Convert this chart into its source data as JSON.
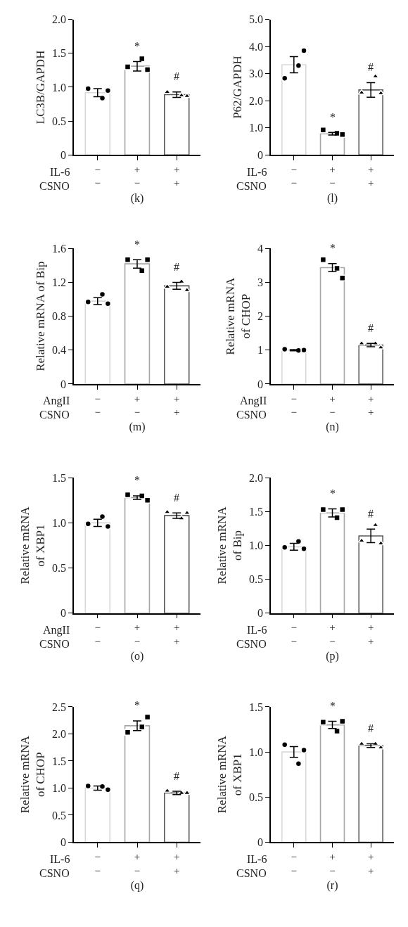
{
  "chart_data": [
    {
      "type": "bar",
      "xlabel": "(k)",
      "ylabel": "LC3B/GAPDH",
      "categories": [
        "−\n−",
        "+\n−",
        "+\n+"
      ],
      "ylim": [
        0,
        2
      ],
      "yticks": [
        0,
        0.5,
        {
          "value": 1,
          "label": "1.0"
        },
        1.5,
        {
          "value": 2,
          "label": "2.0"
        }
      ],
      "series": [
        {
          "type": "bar",
          "values": [
            0.92,
            1.31,
            0.89
          ],
          "errors": [
            0.06,
            0.07,
            0.04
          ],
          "colors": [
            "#d9d9d9",
            "#a6a6a6",
            "#595959"
          ]
        },
        {
          "type": "scatter",
          "marker": "circle",
          "color": "#000000",
          "x": [
            "−\n−",
            "−\n−",
            "−\n−"
          ],
          "values": [
            0.98,
            0.84,
            0.95
          ]
        },
        {
          "type": "scatter",
          "marker": "square",
          "color": "#000000",
          "x": [
            "+\n−",
            "+\n−",
            "+\n−"
          ],
          "values": [
            1.3,
            1.42,
            1.26
          ]
        },
        {
          "type": "scatter",
          "marker": "triangle",
          "color": "#000000",
          "x": [
            "+\n+",
            "+\n+",
            "+\n+"
          ],
          "values": [
            0.93,
            0.88,
            0.87
          ]
        }
      ],
      "annotations": [
        "IL-6",
        "CSNO",
        "*",
        "#"
      ]
    },
    {
      "type": "bar",
      "xlabel": "(l)",
      "ylabel": "P62/GAPDH",
      "categories": [
        "−\n−",
        "+\n−",
        "+\n+"
      ],
      "ylim": [
        0,
        5
      ],
      "yticks": [
        0,
        {
          "value": 1,
          "label": "1.0"
        },
        {
          "value": 2,
          "label": "2.0"
        },
        {
          "value": 3,
          "label": "3.0"
        },
        {
          "value": 4,
          "label": "4.0"
        },
        {
          "value": 5,
          "label": "5.0"
        }
      ],
      "series": [
        {
          "type": "bar",
          "values": [
            3.33,
            0.78,
            2.4
          ],
          "errors": [
            0.3,
            0.05,
            0.27
          ],
          "colors": [
            "#d9d9d9",
            "#a6a6a6",
            "#595959"
          ]
        },
        {
          "type": "scatter",
          "marker": "circle",
          "color": "#000000",
          "x": [
            "−\n−",
            "−\n−",
            "−\n−"
          ],
          "values": [
            2.83,
            3.3,
            3.85
          ]
        },
        {
          "type": "scatter",
          "marker": "square",
          "color": "#000000",
          "x": [
            "+\n−",
            "+\n−",
            "+\n−"
          ],
          "values": [
            0.92,
            0.8,
            0.75
          ]
        },
        {
          "type": "scatter",
          "marker": "triangle",
          "color": "#000000",
          "x": [
            "+\n+",
            "+\n+",
            "+\n+"
          ],
          "values": [
            2.3,
            2.9,
            2.28
          ]
        }
      ],
      "annotations": [
        "IL-6",
        "CSNO",
        "*",
        "#"
      ]
    },
    {
      "type": "bar",
      "xlabel": "(m)",
      "ylabel": "Relative mRNA of Bip",
      "categories": [
        "−\n−",
        "+\n−",
        "+\n+"
      ],
      "ylim": [
        0,
        1.6
      ],
      "yticks": [
        0,
        0.4,
        0.8,
        1.2,
        1.6
      ],
      "series": [
        {
          "type": "bar",
          "values": [
            0.98,
            1.42,
            1.16
          ],
          "errors": [
            0.04,
            0.05,
            0.04
          ],
          "colors": [
            "#d9d9d9",
            "#a6a6a6",
            "#595959"
          ]
        },
        {
          "type": "scatter",
          "marker": "circle",
          "color": "#000000",
          "x": [
            "−\n−",
            "−\n−",
            "−\n−"
          ],
          "values": [
            0.97,
            1.06,
            0.95
          ]
        },
        {
          "type": "scatter",
          "marker": "square",
          "color": "#000000",
          "x": [
            "+\n−",
            "+\n−",
            "+\n−"
          ],
          "values": [
            1.47,
            1.34,
            1.47
          ]
        },
        {
          "type": "scatter",
          "marker": "triangle",
          "color": "#000000",
          "x": [
            "+\n+",
            "+\n+",
            "+\n+"
          ],
          "values": [
            1.15,
            1.21,
            1.11
          ]
        }
      ],
      "annotations": [
        "AngII",
        "CSNO",
        "*",
        "#"
      ]
    },
    {
      "type": "bar",
      "xlabel": "(n)",
      "ylabel": "Relative mRNA\nof CHOP",
      "categories": [
        "−\n−",
        "+\n−",
        "+\n+"
      ],
      "ylim": [
        0,
        4
      ],
      "yticks": [
        0,
        1,
        2,
        3,
        4
      ],
      "series": [
        {
          "type": "bar",
          "values": [
            1.0,
            3.44,
            1.15
          ],
          "errors": [
            0.02,
            0.12,
            0.05
          ],
          "colors": [
            "#d9d9d9",
            "#a6a6a6",
            "#595959"
          ]
        },
        {
          "type": "scatter",
          "marker": "circle",
          "color": "#000000",
          "x": [
            "−\n−",
            "−\n−",
            "−\n−"
          ],
          "values": [
            1.03,
            0.99,
            1.0
          ]
        },
        {
          "type": "scatter",
          "marker": "square",
          "color": "#000000",
          "x": [
            "+\n−",
            "+\n−",
            "+\n−"
          ],
          "values": [
            3.67,
            3.42,
            3.13
          ]
        },
        {
          "type": "scatter",
          "marker": "triangle",
          "color": "#000000",
          "x": [
            "+\n+",
            "+\n+",
            "+\n+"
          ],
          "values": [
            1.2,
            1.2,
            1.08
          ]
        }
      ],
      "annotations": [
        "AngII",
        "CSNO",
        "*",
        "#"
      ]
    },
    {
      "type": "bar",
      "xlabel": "(o)",
      "ylabel": "Relative mRNA\nof XBP1",
      "categories": [
        "−\n−",
        "+\n−",
        "+\n+"
      ],
      "ylim": [
        0,
        1.5
      ],
      "yticks": [
        0,
        0.5,
        {
          "value": 1,
          "label": "1.0"
        },
        1.5
      ],
      "series": [
        {
          "type": "bar",
          "values": [
            1.0,
            1.28,
            1.08
          ],
          "errors": [
            0.04,
            0.02,
            0.03
          ],
          "colors": [
            "#d9d9d9",
            "#a6a6a6",
            "#595959"
          ]
        },
        {
          "type": "scatter",
          "marker": "circle",
          "color": "#000000",
          "x": [
            "−\n−",
            "−\n−",
            "−\n−"
          ],
          "values": [
            0.99,
            1.07,
            0.96
          ]
        },
        {
          "type": "scatter",
          "marker": "square",
          "color": "#000000",
          "x": [
            "+\n−",
            "+\n−",
            "+\n−"
          ],
          "values": [
            1.31,
            1.3,
            1.25
          ]
        },
        {
          "type": "scatter",
          "marker": "triangle",
          "color": "#000000",
          "x": [
            "+\n+",
            "+\n+",
            "+\n+"
          ],
          "values": [
            1.12,
            1.05,
            1.11
          ]
        }
      ],
      "annotations": [
        "AngII",
        "CSNO",
        "*",
        "#"
      ]
    },
    {
      "type": "bar",
      "xlabel": "(p)",
      "ylabel": "Relative mRNA\nof Bip",
      "categories": [
        "−\n−",
        "+\n−",
        "+\n+"
      ],
      "ylim": [
        0,
        2
      ],
      "yticks": [
        0,
        0.5,
        {
          "value": 1,
          "label": "1.0"
        },
        1.5,
        {
          "value": 2,
          "label": "2.0"
        }
      ],
      "series": [
        {
          "type": "bar",
          "values": [
            0.98,
            1.48,
            1.14
          ],
          "errors": [
            0.05,
            0.06,
            0.1
          ],
          "colors": [
            "#d9d9d9",
            "#a6a6a6",
            "#595959"
          ]
        },
        {
          "type": "scatter",
          "marker": "circle",
          "color": "#000000",
          "x": [
            "−\n−",
            "−\n−",
            "−\n−"
          ],
          "values": [
            0.97,
            1.06,
            0.95
          ]
        },
        {
          "type": "scatter",
          "marker": "square",
          "color": "#000000",
          "x": [
            "+\n−",
            "+\n−",
            "+\n−"
          ],
          "values": [
            1.53,
            1.41,
            1.53
          ]
        },
        {
          "type": "scatter",
          "marker": "triangle",
          "color": "#000000",
          "x": [
            "+\n+",
            "+\n+",
            "+\n+"
          ],
          "values": [
            1.07,
            1.3,
            1.03
          ]
        }
      ],
      "annotations": [
        "IL-6",
        "CSNO",
        "*",
        "#"
      ]
    },
    {
      "type": "bar",
      "xlabel": "(q)",
      "ylabel": "Relative mRNA\nof CHOP",
      "categories": [
        "−\n−",
        "+\n−",
        "+\n+"
      ],
      "ylim": [
        0,
        2.5
      ],
      "yticks": [
        0,
        0.5,
        {
          "value": 1,
          "label": "1.0"
        },
        1.5,
        {
          "value": 2,
          "label": "2.0"
        },
        2.5
      ],
      "series": [
        {
          "type": "bar",
          "values": [
            1.0,
            2.15,
            0.91
          ],
          "errors": [
            0.04,
            0.09,
            0.03
          ],
          "colors": [
            "#d9d9d9",
            "#a6a6a6",
            "#595959"
          ]
        },
        {
          "type": "scatter",
          "marker": "circle",
          "color": "#000000",
          "x": [
            "−\n−",
            "−\n−",
            "−\n−"
          ],
          "values": [
            1.04,
            1.03,
            0.97
          ]
        },
        {
          "type": "scatter",
          "marker": "square",
          "color": "#000000",
          "x": [
            "+\n−",
            "+\n−",
            "+\n−"
          ],
          "values": [
            2.03,
            2.13,
            2.31
          ]
        },
        {
          "type": "scatter",
          "marker": "triangle",
          "color": "#000000",
          "x": [
            "+\n+",
            "+\n+",
            "+\n+"
          ],
          "values": [
            0.95,
            0.91,
            0.91
          ]
        }
      ],
      "annotations": [
        "IL-6",
        "CSNO",
        "*",
        "#"
      ]
    },
    {
      "type": "bar",
      "xlabel": "(r)",
      "ylabel": "Relative mRNA\nof XBP1",
      "categories": [
        "−\n−",
        "+\n−",
        "+\n+"
      ],
      "ylim": [
        0,
        1.5
      ],
      "yticks": [
        0,
        0.5,
        {
          "value": 1,
          "label": "1.0"
        },
        1.5
      ],
      "series": [
        {
          "type": "bar",
          "values": [
            1.0,
            1.3,
            1.07
          ],
          "errors": [
            0.06,
            0.04,
            0.02
          ],
          "colors": [
            "#d9d9d9",
            "#a6a6a6",
            "#595959"
          ]
        },
        {
          "type": "scatter",
          "marker": "circle",
          "color": "#000000",
          "x": [
            "−\n−",
            "−\n−",
            "−\n−"
          ],
          "values": [
            1.08,
            0.87,
            1.02
          ]
        },
        {
          "type": "scatter",
          "marker": "square",
          "color": "#000000",
          "x": [
            "+\n−",
            "+\n−",
            "+\n−"
          ],
          "values": [
            1.33,
            1.23,
            1.34
          ]
        },
        {
          "type": "scatter",
          "marker": "triangle",
          "color": "#000000",
          "x": [
            "+\n+",
            "+\n+",
            "+\n+"
          ],
          "values": [
            1.09,
            1.09,
            1.05
          ]
        }
      ],
      "annotations": [
        "IL-6",
        "CSNO",
        "*",
        "#"
      ]
    }
  ]
}
